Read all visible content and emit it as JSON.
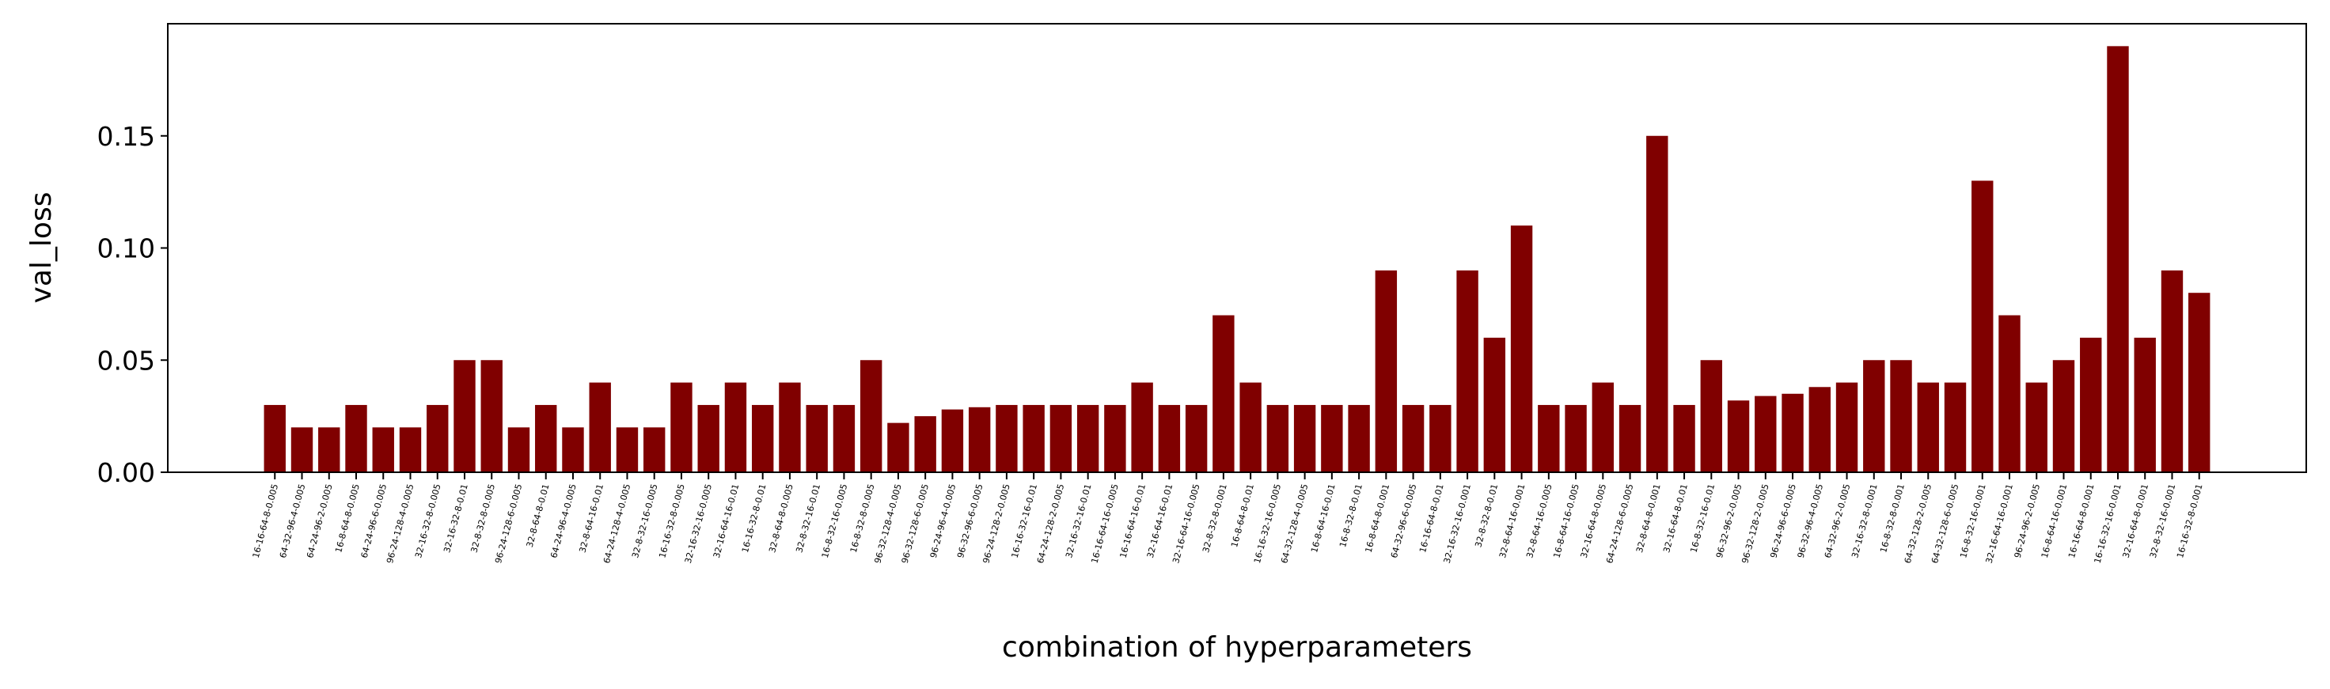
{
  "chart_data": {
    "type": "bar",
    "xlabel": "combination of hyperparameters",
    "ylabel": "val_loss",
    "color": "#800000",
    "categories": [
      "16-16-64-8-0.005",
      "64-32-96-4-0.005",
      "64-24-96-2-0.005",
      "16-8-64-8-0.005",
      "64-24-96-6-0.005",
      "96-24-128-4-0.005",
      "32-16-32-8-0.005",
      "32-16-32-8-0.01",
      "32-8-32-8-0.005",
      "96-24-128-6-0.005",
      "32-8-64-8-0.01",
      "64-24-96-4-0.005",
      "32-8-64-16-0.01",
      "64-24-128-4-0.005",
      "32-8-32-16-0.005",
      "16-16-32-8-0.005",
      "32-16-32-16-0.005",
      "32-16-64-16-0.01",
      "16-16-32-8-0.01",
      "32-8-64-8-0.005",
      "32-8-32-16-0.01",
      "16-8-32-16-0.005",
      "16-8-32-8-0.005",
      "96-32-128-4-0.005",
      "96-32-128-6-0.005",
      "96-24-96-4-0.005",
      "96-32-96-6-0.005",
      "96-24-128-2-0.005",
      "16-16-32-16-0.01",
      "64-24-128-2-0.005",
      "32-16-32-16-0.01",
      "16-16-64-16-0.005",
      "16-16-64-16-0.01",
      "32-16-64-16-0.01",
      "32-16-64-16-0.005",
      "32-8-32-8-0.001",
      "16-8-64-8-0.01",
      "16-16-32-16-0.005",
      "64-32-128-4-0.005",
      "16-8-64-16-0.01",
      "16-8-32-8-0.01",
      "16-8-64-8-0.001",
      "64-32-96-6-0.005",
      "16-16-64-8-0.01",
      "32-16-32-16-0.001",
      "32-8-32-8-0.01",
      "32-8-64-16-0.001",
      "32-8-64-16-0.005",
      "16-8-64-16-0.005",
      "32-16-64-8-0.005",
      "64-24-128-6-0.005",
      "32-8-64-8-0.001",
      "32-16-64-8-0.01",
      "16-8-32-16-0.01",
      "96-32-96-2-0.005",
      "96-32-128-2-0.005",
      "96-24-96-6-0.005",
      "96-32-96-4-0.005",
      "64-32-96-2-0.005",
      "32-16-32-8-0.001",
      "16-8-32-8-0.001",
      "64-32-128-2-0.005",
      "64-32-128-6-0.005",
      "16-8-32-16-0.001",
      "32-16-64-16-0.001",
      "96-24-96-2-0.005",
      "16-8-64-16-0.001",
      "16-16-64-8-0.001",
      "16-16-32-16-0.001",
      "32-16-64-8-0.001",
      "32-8-32-16-0.001",
      "16-16-32-8-0.001"
    ],
    "values": [
      0.03,
      0.02,
      0.02,
      0.03,
      0.02,
      0.02,
      0.03,
      0.05,
      0.05,
      0.02,
      0.03,
      0.02,
      0.04,
      0.02,
      0.02,
      0.04,
      0.03,
      0.04,
      0.03,
      0.04,
      0.03,
      0.03,
      0.05,
      0.022,
      0.025,
      0.028,
      0.029,
      0.03,
      0.03,
      0.03,
      0.03,
      0.03,
      0.04,
      0.03,
      0.03,
      0.07,
      0.04,
      0.03,
      0.03,
      0.03,
      0.03,
      0.09,
      0.03,
      0.03,
      0.09,
      0.06,
      0.11,
      0.03,
      0.03,
      0.04,
      0.03,
      0.15,
      0.03,
      0.05,
      0.032,
      0.034,
      0.035,
      0.038,
      0.04,
      0.05,
      0.05,
      0.04,
      0.04,
      0.13,
      0.07,
      0.04,
      0.05,
      0.06,
      0.19,
      0.06,
      0.09,
      0.08
    ],
    "ylim": [
      0,
      0.2
    ],
    "yticks": [
      {
        "value": 0,
        "label": "0.00"
      },
      {
        "value": 0.05,
        "label": "0.05"
      },
      {
        "value": 0.1,
        "label": "0.10"
      },
      {
        "value": 0.15,
        "label": "0.15"
      }
    ]
  }
}
